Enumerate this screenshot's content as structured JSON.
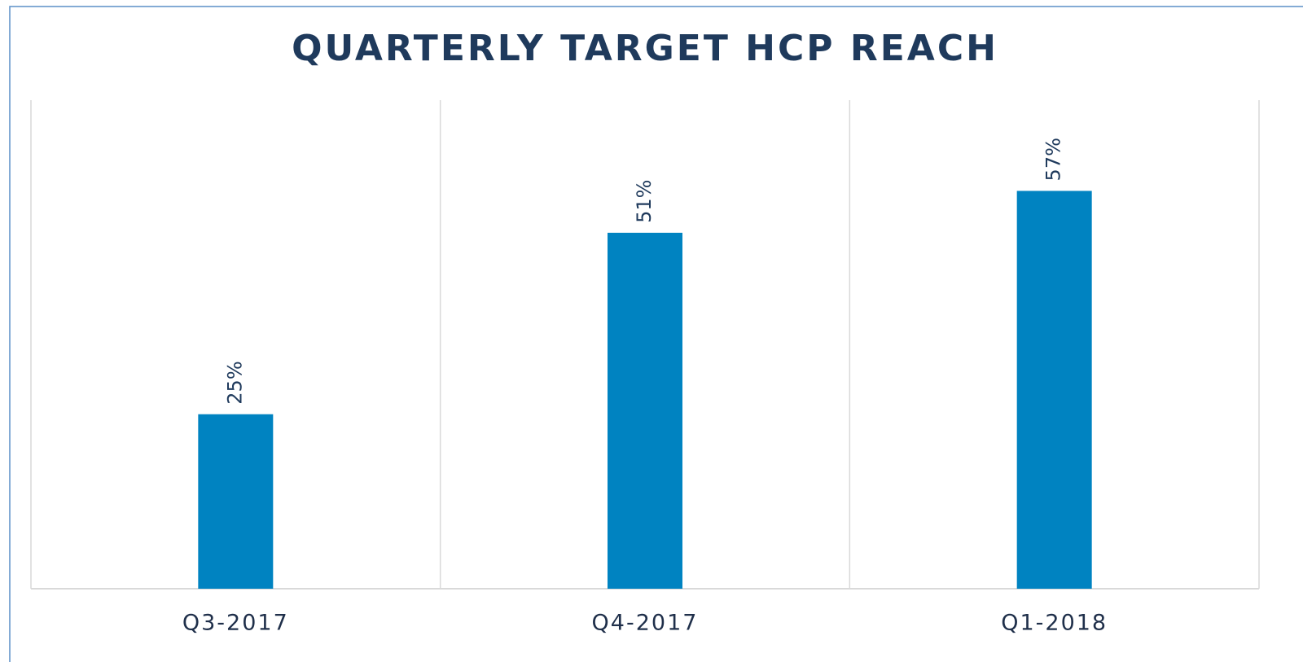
{
  "chart_data": {
    "type": "bar",
    "title": "QUARTERLY TARGET HCP REACH",
    "categories": [
      "Q3-2017",
      "Q4-2017",
      "Q1-2018"
    ],
    "values": [
      25,
      51,
      57
    ],
    "value_labels": [
      "25%",
      "51%",
      "57%"
    ],
    "color": "#0083c1",
    "ylim": [
      0,
      70
    ]
  }
}
